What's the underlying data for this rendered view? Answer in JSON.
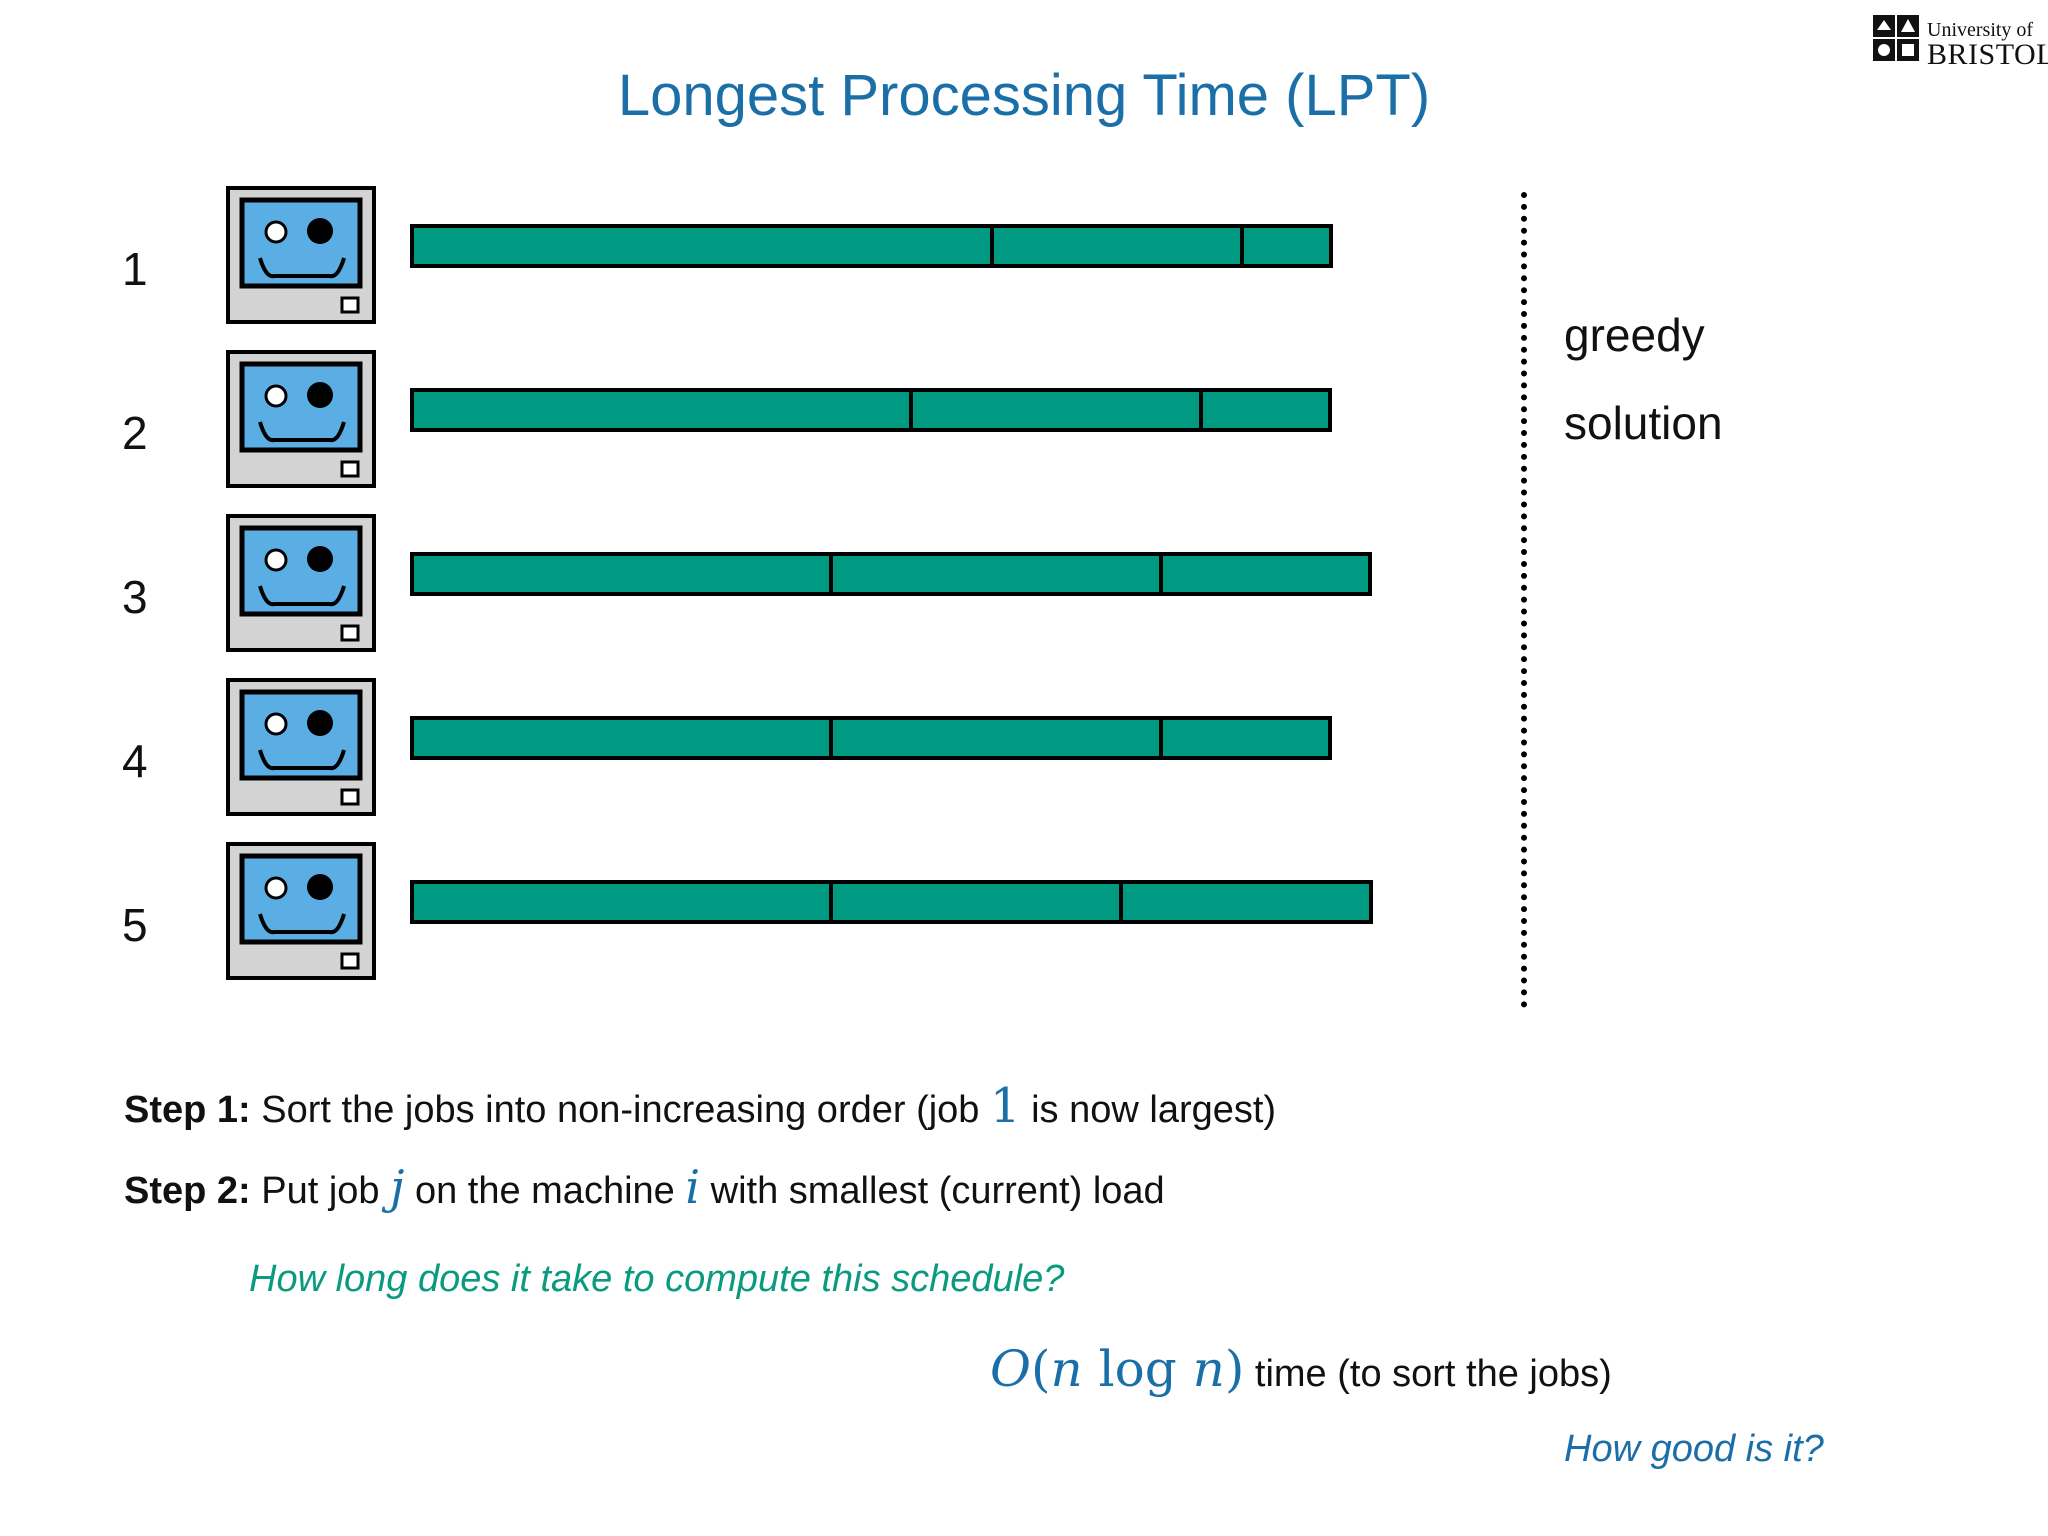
{
  "title": "Longest Processing Time (LPT)",
  "logo": {
    "line1": "University of",
    "line2": "BRISTOL"
  },
  "machines": [
    {
      "label": "1",
      "jobs": [
        3.6,
        1.55,
        0.55
      ]
    },
    {
      "label": "2",
      "jobs": [
        3.1,
        1.8,
        0.8
      ]
    },
    {
      "label": "3",
      "jobs": [
        2.6,
        2.05,
        1.3
      ]
    },
    {
      "label": "4",
      "jobs": [
        2.6,
        2.05,
        1.05
      ]
    },
    {
      "label": "5",
      "jobs": [
        2.6,
        1.8,
        1.55
      ]
    }
  ],
  "colors": {
    "job": "#009982",
    "title": "#1a6fa8",
    "question": "#0a9a80",
    "screen": "#5aaee4"
  },
  "side_label": {
    "line1": "greedy",
    "line2": "solution"
  },
  "steps": [
    {
      "label": "Step 1:",
      "text_a": " Sort the jobs into non-increasing order (job ",
      "math": "1",
      "text_b": " is now largest)"
    },
    {
      "label": "Step 2:",
      "text_a": " Put job ",
      "math_a": "j",
      "text_b": " on the machine ",
      "math_b": "i",
      "text_c": " with smallest (current) load"
    }
  ],
  "question1": "How long does it take to compute this schedule?",
  "answer": {
    "O": "O",
    "lparen": "(",
    "n1": "n",
    "log": " log ",
    "n2": "n",
    "rparen": ")",
    "text": " time (to sort the jobs)"
  },
  "question2": "How good is it?"
}
